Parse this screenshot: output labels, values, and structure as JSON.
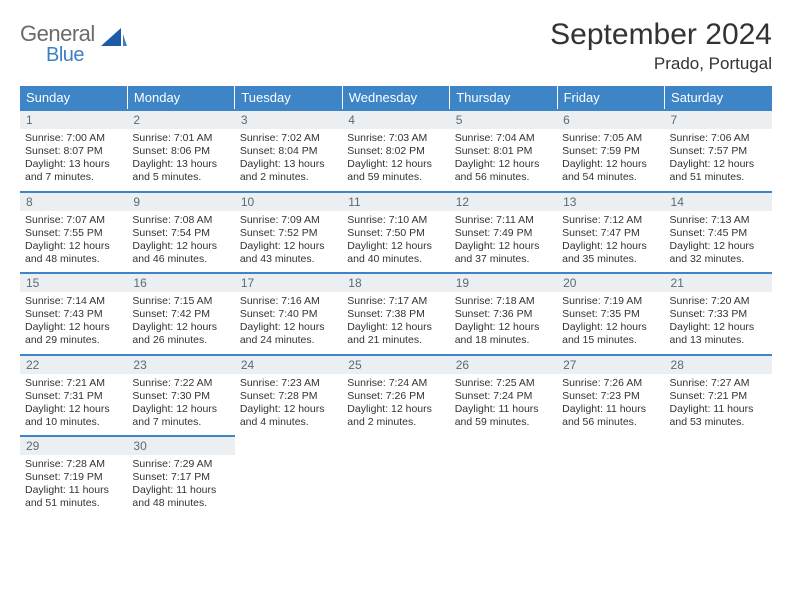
{
  "brand": {
    "line1": "General",
    "line2": "Blue"
  },
  "title": "September 2024",
  "location": "Prado, Portugal",
  "colors": {
    "header_bg": "#3d85c6",
    "header_text": "#ffffff",
    "daynum_bg": "#eceff1",
    "daynum_border": "#3d85c6",
    "daynum_text": "#5a6b78",
    "body_text": "#333333",
    "logo_gray": "#6b6b6b",
    "logo_blue": "#3d7fc4"
  },
  "day_headers": [
    "Sunday",
    "Monday",
    "Tuesday",
    "Wednesday",
    "Thursday",
    "Friday",
    "Saturday"
  ],
  "weeks": [
    [
      {
        "num": "1",
        "sunrise": "Sunrise: 7:00 AM",
        "sunset": "Sunset: 8:07 PM",
        "daylight1": "Daylight: 13 hours",
        "daylight2": "and 7 minutes."
      },
      {
        "num": "2",
        "sunrise": "Sunrise: 7:01 AM",
        "sunset": "Sunset: 8:06 PM",
        "daylight1": "Daylight: 13 hours",
        "daylight2": "and 5 minutes."
      },
      {
        "num": "3",
        "sunrise": "Sunrise: 7:02 AM",
        "sunset": "Sunset: 8:04 PM",
        "daylight1": "Daylight: 13 hours",
        "daylight2": "and 2 minutes."
      },
      {
        "num": "4",
        "sunrise": "Sunrise: 7:03 AM",
        "sunset": "Sunset: 8:02 PM",
        "daylight1": "Daylight: 12 hours",
        "daylight2": "and 59 minutes."
      },
      {
        "num": "5",
        "sunrise": "Sunrise: 7:04 AM",
        "sunset": "Sunset: 8:01 PM",
        "daylight1": "Daylight: 12 hours",
        "daylight2": "and 56 minutes."
      },
      {
        "num": "6",
        "sunrise": "Sunrise: 7:05 AM",
        "sunset": "Sunset: 7:59 PM",
        "daylight1": "Daylight: 12 hours",
        "daylight2": "and 54 minutes."
      },
      {
        "num": "7",
        "sunrise": "Sunrise: 7:06 AM",
        "sunset": "Sunset: 7:57 PM",
        "daylight1": "Daylight: 12 hours",
        "daylight2": "and 51 minutes."
      }
    ],
    [
      {
        "num": "8",
        "sunrise": "Sunrise: 7:07 AM",
        "sunset": "Sunset: 7:55 PM",
        "daylight1": "Daylight: 12 hours",
        "daylight2": "and 48 minutes."
      },
      {
        "num": "9",
        "sunrise": "Sunrise: 7:08 AM",
        "sunset": "Sunset: 7:54 PM",
        "daylight1": "Daylight: 12 hours",
        "daylight2": "and 46 minutes."
      },
      {
        "num": "10",
        "sunrise": "Sunrise: 7:09 AM",
        "sunset": "Sunset: 7:52 PM",
        "daylight1": "Daylight: 12 hours",
        "daylight2": "and 43 minutes."
      },
      {
        "num": "11",
        "sunrise": "Sunrise: 7:10 AM",
        "sunset": "Sunset: 7:50 PM",
        "daylight1": "Daylight: 12 hours",
        "daylight2": "and 40 minutes."
      },
      {
        "num": "12",
        "sunrise": "Sunrise: 7:11 AM",
        "sunset": "Sunset: 7:49 PM",
        "daylight1": "Daylight: 12 hours",
        "daylight2": "and 37 minutes."
      },
      {
        "num": "13",
        "sunrise": "Sunrise: 7:12 AM",
        "sunset": "Sunset: 7:47 PM",
        "daylight1": "Daylight: 12 hours",
        "daylight2": "and 35 minutes."
      },
      {
        "num": "14",
        "sunrise": "Sunrise: 7:13 AM",
        "sunset": "Sunset: 7:45 PM",
        "daylight1": "Daylight: 12 hours",
        "daylight2": "and 32 minutes."
      }
    ],
    [
      {
        "num": "15",
        "sunrise": "Sunrise: 7:14 AM",
        "sunset": "Sunset: 7:43 PM",
        "daylight1": "Daylight: 12 hours",
        "daylight2": "and 29 minutes."
      },
      {
        "num": "16",
        "sunrise": "Sunrise: 7:15 AM",
        "sunset": "Sunset: 7:42 PM",
        "daylight1": "Daylight: 12 hours",
        "daylight2": "and 26 minutes."
      },
      {
        "num": "17",
        "sunrise": "Sunrise: 7:16 AM",
        "sunset": "Sunset: 7:40 PM",
        "daylight1": "Daylight: 12 hours",
        "daylight2": "and 24 minutes."
      },
      {
        "num": "18",
        "sunrise": "Sunrise: 7:17 AM",
        "sunset": "Sunset: 7:38 PM",
        "daylight1": "Daylight: 12 hours",
        "daylight2": "and 21 minutes."
      },
      {
        "num": "19",
        "sunrise": "Sunrise: 7:18 AM",
        "sunset": "Sunset: 7:36 PM",
        "daylight1": "Daylight: 12 hours",
        "daylight2": "and 18 minutes."
      },
      {
        "num": "20",
        "sunrise": "Sunrise: 7:19 AM",
        "sunset": "Sunset: 7:35 PM",
        "daylight1": "Daylight: 12 hours",
        "daylight2": "and 15 minutes."
      },
      {
        "num": "21",
        "sunrise": "Sunrise: 7:20 AM",
        "sunset": "Sunset: 7:33 PM",
        "daylight1": "Daylight: 12 hours",
        "daylight2": "and 13 minutes."
      }
    ],
    [
      {
        "num": "22",
        "sunrise": "Sunrise: 7:21 AM",
        "sunset": "Sunset: 7:31 PM",
        "daylight1": "Daylight: 12 hours",
        "daylight2": "and 10 minutes."
      },
      {
        "num": "23",
        "sunrise": "Sunrise: 7:22 AM",
        "sunset": "Sunset: 7:30 PM",
        "daylight1": "Daylight: 12 hours",
        "daylight2": "and 7 minutes."
      },
      {
        "num": "24",
        "sunrise": "Sunrise: 7:23 AM",
        "sunset": "Sunset: 7:28 PM",
        "daylight1": "Daylight: 12 hours",
        "daylight2": "and 4 minutes."
      },
      {
        "num": "25",
        "sunrise": "Sunrise: 7:24 AM",
        "sunset": "Sunset: 7:26 PM",
        "daylight1": "Daylight: 12 hours",
        "daylight2": "and 2 minutes."
      },
      {
        "num": "26",
        "sunrise": "Sunrise: 7:25 AM",
        "sunset": "Sunset: 7:24 PM",
        "daylight1": "Daylight: 11 hours",
        "daylight2": "and 59 minutes."
      },
      {
        "num": "27",
        "sunrise": "Sunrise: 7:26 AM",
        "sunset": "Sunset: 7:23 PM",
        "daylight1": "Daylight: 11 hours",
        "daylight2": "and 56 minutes."
      },
      {
        "num": "28",
        "sunrise": "Sunrise: 7:27 AM",
        "sunset": "Sunset: 7:21 PM",
        "daylight1": "Daylight: 11 hours",
        "daylight2": "and 53 minutes."
      }
    ],
    [
      {
        "num": "29",
        "sunrise": "Sunrise: 7:28 AM",
        "sunset": "Sunset: 7:19 PM",
        "daylight1": "Daylight: 11 hours",
        "daylight2": "and 51 minutes."
      },
      {
        "num": "30",
        "sunrise": "Sunrise: 7:29 AM",
        "sunset": "Sunset: 7:17 PM",
        "daylight1": "Daylight: 11 hours",
        "daylight2": "and 48 minutes."
      },
      null,
      null,
      null,
      null,
      null
    ]
  ]
}
